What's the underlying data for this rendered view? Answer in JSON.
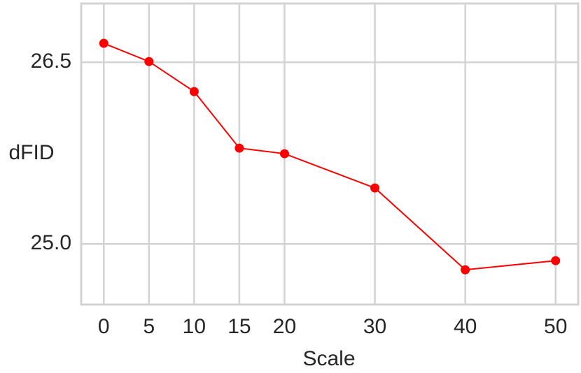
{
  "chart_data": {
    "type": "line",
    "xlabel": "Scale",
    "ylabel": "dFID",
    "x": [
      0,
      5,
      10,
      15,
      20,
      30,
      40,
      50
    ],
    "series": [
      {
        "color": "#ff0000",
        "values": [
          26.656,
          26.506,
          26.258,
          25.791,
          25.745,
          25.462,
          24.787,
          24.862
        ]
      }
    ],
    "xlim": [
      -2.5,
      52.5
    ],
    "ylim": [
      24.5,
      26.985
    ],
    "xticks": [
      0,
      5,
      10,
      15,
      20,
      30,
      40,
      50
    ],
    "yticks": [
      {
        "value": 25,
        "label": "25.0"
      },
      26.5
    ],
    "grid": true
  }
}
